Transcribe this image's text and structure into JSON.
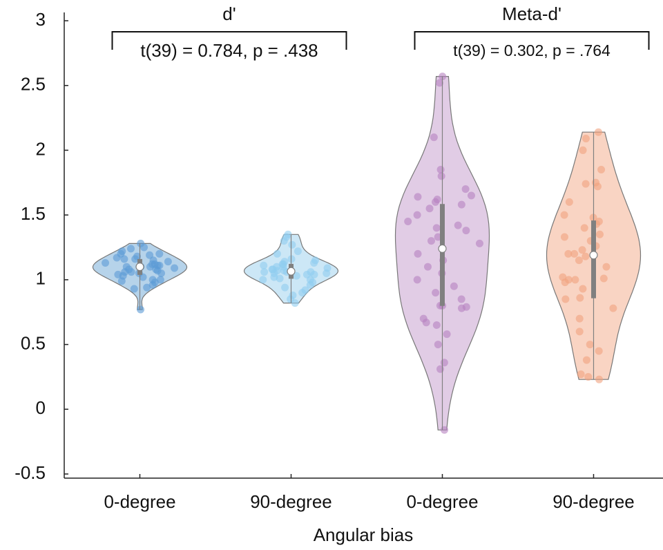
{
  "chart_data": {
    "type": "violin",
    "xlabel": "Angular bias",
    "ylim": [
      -0.5,
      3
    ],
    "yticks": [
      -0.5,
      0,
      0.5,
      1,
      1.5,
      2,
      2.5,
      3
    ],
    "groups": [
      {
        "title": "d'",
        "annotation": "t(39) = 0.784, p = .438",
        "violins": [
          {
            "category": "0-degree",
            "color": "#5b9bd5",
            "fill": "#a9cbe6",
            "values": [
              1.28,
              1.25,
              1.24,
              1.22,
              1.2,
              1.19,
              1.18,
              1.17,
              1.16,
              1.15,
              1.14,
              1.13,
              1.12,
              1.11,
              1.1,
              1.1,
              1.09,
              1.08,
              1.07,
              1.06,
              1.05,
              1.04,
              1.03,
              1.02,
              1.0,
              0.99,
              0.98,
              0.96,
              0.94,
              0.93,
              0.77,
              1.11,
              1.05,
              1.08,
              1.2,
              1.16,
              1.12,
              1.0,
              1.1,
              1.06
            ]
          },
          {
            "category": "90-degree",
            "color": "#8fcdf0",
            "fill": "#c3e3f5",
            "values": [
              1.35,
              1.33,
              1.3,
              1.27,
              1.22,
              1.2,
              1.16,
              1.15,
              1.14,
              1.13,
              1.12,
              1.11,
              1.1,
              1.09,
              1.08,
              1.07,
              1.07,
              1.06,
              1.06,
              1.05,
              1.05,
              1.04,
              1.03,
              1.02,
              1.01,
              1.0,
              0.98,
              0.96,
              0.94,
              0.92,
              0.9,
              0.88,
              0.85,
              0.82,
              1.1,
              1.08,
              1.04,
              1.0,
              1.12,
              1.06
            ]
          }
        ]
      },
      {
        "title": "Meta-d'",
        "annotation": "t(39) = 0.302, p = .764",
        "violins": [
          {
            "category": "0-degree",
            "color": "#b580c0",
            "fill": "#dcc3e0",
            "values": [
              2.57,
              2.52,
              2.1,
              1.85,
              1.8,
              1.65,
              1.64,
              1.62,
              1.6,
              1.58,
              1.55,
              1.5,
              1.45,
              1.42,
              1.4,
              1.38,
              1.33,
              1.3,
              1.28,
              1.2,
              1.1,
              1.0,
              0.95,
              0.9,
              0.8,
              0.8,
              0.79,
              0.78,
              0.7,
              0.67,
              0.65,
              0.58,
              0.5,
              0.36,
              0.31,
              -0.16,
              1.15,
              1.05,
              0.85,
              1.7
            ]
          },
          {
            "category": "90-degree",
            "color": "#f0a27f",
            "fill": "#f8cdb8",
            "values": [
              2.14,
              2.09,
              2.0,
              1.85,
              1.75,
              1.74,
              1.72,
              1.6,
              1.5,
              1.48,
              1.43,
              1.4,
              1.35,
              1.33,
              1.3,
              1.26,
              1.23,
              1.2,
              1.2,
              1.18,
              1.15,
              1.1,
              1.02,
              1.01,
              1.0,
              0.98,
              0.93,
              0.85,
              0.78,
              0.7,
              0.6,
              0.5,
              0.45,
              0.38,
              0.27,
              0.25,
              0.23,
              1.45,
              1.0,
              0.86
            ]
          }
        ]
      }
    ]
  }
}
